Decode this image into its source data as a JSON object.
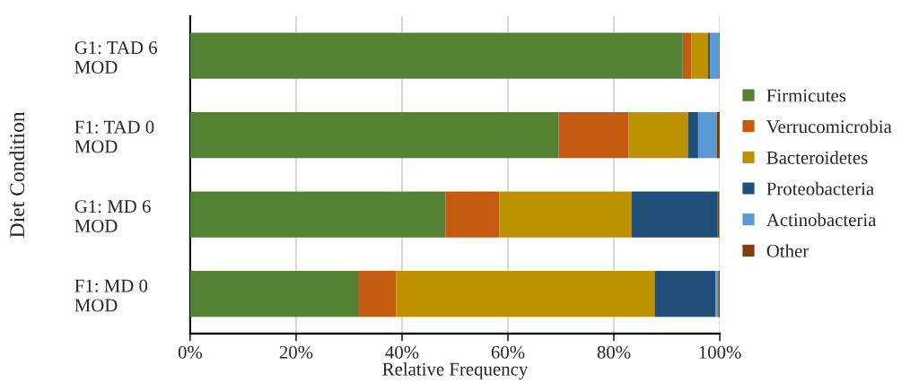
{
  "chart_data": {
    "type": "bar",
    "orientation": "horizontal",
    "stacked": true,
    "xlabel": "Relative Frequency",
    "ylabel": "Diet Condition",
    "categories": [
      "G1: TAD 6\nMOD",
      "F1: TAD 0\nMOD",
      "G1: MD 6\nMOD",
      "F1: MD 0\nMOD"
    ],
    "series": [
      {
        "name": "Firmicutes",
        "color": "#548235",
        "values": [
          93.0,
          69.6,
          48.2,
          31.7
        ]
      },
      {
        "name": "Verrucomicrobia",
        "color": "#c55a11",
        "values": [
          1.6,
          13.2,
          10.2,
          7.2
        ]
      },
      {
        "name": "Bacteroidetes",
        "color": "#bf9000",
        "values": [
          3.2,
          11.2,
          24.9,
          48.8
        ]
      },
      {
        "name": "Proteobacteria",
        "color": "#1f4e79",
        "values": [
          0.4,
          1.9,
          16.3,
          11.5
        ]
      },
      {
        "name": "Actinobacteria",
        "color": "#5b9bd5",
        "values": [
          1.7,
          3.5,
          null,
          0.5
        ]
      },
      {
        "name": "Other",
        "color": "#843c0c",
        "values": [
          0.1,
          0.6,
          0.3,
          0.3
        ]
      }
    ],
    "xlim": [
      0,
      100
    ],
    "xticks": [
      {
        "value": 0,
        "label": "0%"
      },
      {
        "value": 20,
        "label": "20%"
      },
      {
        "value": 40,
        "label": "40%"
      },
      {
        "value": 60,
        "label": "60%"
      },
      {
        "value": 80,
        "label": "80%"
      },
      {
        "value": 100,
        "label": "100%"
      }
    ],
    "grid": "x",
    "legend": "right"
  }
}
